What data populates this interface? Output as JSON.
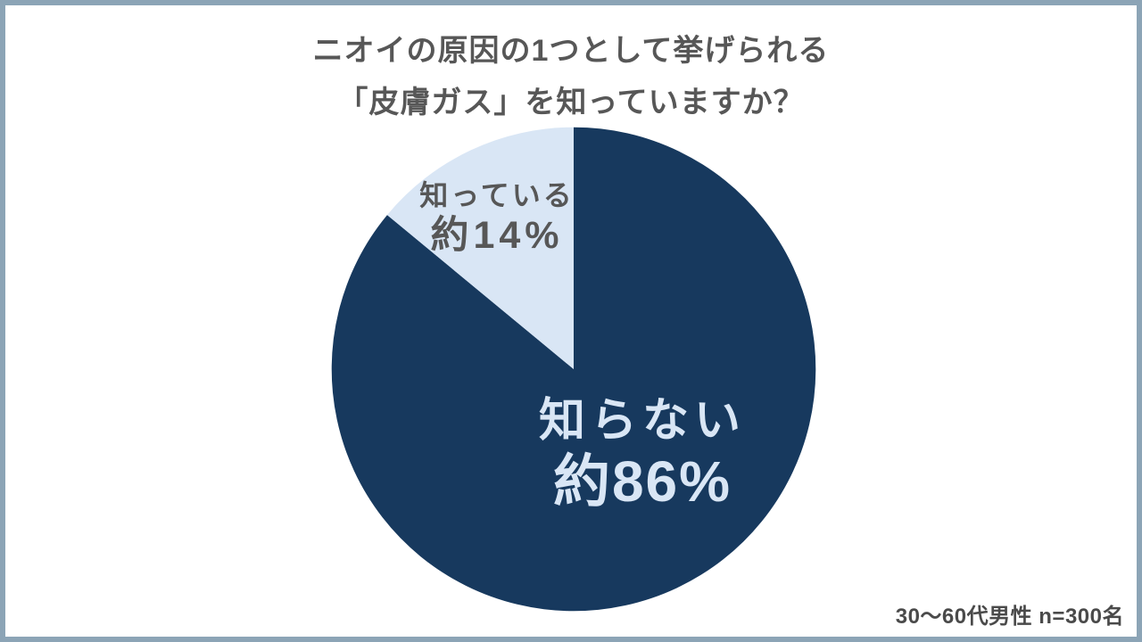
{
  "frame": {
    "border_color": "#8ca4b6",
    "background": "#ffffff"
  },
  "header": {
    "title_line1": "ニオイの原因の1つとして挙げられる",
    "title_line2": "「皮膚ガス」を知っていますか？",
    "title_color": "#575757"
  },
  "footer": {
    "sample_note": "30〜60代男性 n=300名"
  },
  "chart_data": {
    "type": "pie",
    "title": "ニオイの原因の1つとして挙げられる「皮膚ガス」を知っていますか？",
    "unit": "%",
    "categories": [
      "知らない",
      "知っている"
    ],
    "values": [
      86,
      14
    ],
    "slices": [
      {
        "label": "知らない",
        "value_label": "約86%",
        "percent": 86,
        "color": "#17395e",
        "text_color": "#d9e6f5"
      },
      {
        "label": "知っている",
        "value_label": "約14%",
        "percent": 14,
        "color": "#d9e6f5",
        "text_color": "#575757"
      }
    ],
    "start_angle": "12-oclock",
    "direction": "clockwise",
    "legend": "none",
    "footnote": "30〜60代男性 n=300名"
  }
}
